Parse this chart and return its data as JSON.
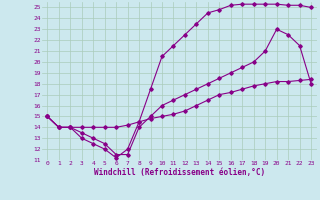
{
  "xlabel": "Windchill (Refroidissement éolien,°C)",
  "bg_color": "#cce8ee",
  "grid_color": "#aaccbb",
  "line_color": "#880088",
  "xlim": [
    -0.5,
    23.5
  ],
  "ylim": [
    11,
    25.5
  ],
  "xticks": [
    0,
    1,
    2,
    3,
    4,
    5,
    6,
    7,
    8,
    9,
    10,
    11,
    12,
    13,
    14,
    15,
    16,
    17,
    18,
    19,
    20,
    21,
    22,
    23
  ],
  "yticks": [
    11,
    12,
    13,
    14,
    15,
    16,
    17,
    18,
    19,
    20,
    21,
    22,
    23,
    24,
    25
  ],
  "line1_x": [
    0,
    1,
    2,
    3,
    4,
    5,
    6,
    7,
    8,
    9,
    10,
    11,
    12,
    13,
    14,
    15,
    16,
    17,
    18,
    19,
    20,
    21,
    22,
    23
  ],
  "line1_y": [
    15,
    14,
    14,
    13,
    12.5,
    12,
    11.2,
    12,
    14.5,
    17.5,
    20.5,
    21.5,
    22.5,
    23.5,
    24.5,
    24.8,
    25.2,
    25.3,
    25.3,
    25.3,
    25.3,
    25.2,
    25.2,
    25.0
  ],
  "line2_x": [
    0,
    1,
    2,
    3,
    4,
    5,
    6,
    7,
    8,
    9,
    10,
    11,
    12,
    13,
    14,
    15,
    16,
    17,
    18,
    19,
    20,
    21,
    22,
    23
  ],
  "line2_y": [
    15,
    14,
    14,
    13.5,
    13,
    12.5,
    11.5,
    11.5,
    14,
    15,
    16,
    16.5,
    17,
    17.5,
    18,
    18.5,
    19,
    19.5,
    20,
    21,
    23,
    22.5,
    21.5,
    18
  ],
  "line3_x": [
    0,
    1,
    2,
    3,
    4,
    5,
    6,
    7,
    8,
    9,
    10,
    11,
    12,
    13,
    14,
    15,
    16,
    17,
    18,
    19,
    20,
    21,
    22,
    23
  ],
  "line3_y": [
    15,
    14,
    14,
    14,
    14,
    14,
    14,
    14.2,
    14.5,
    14.8,
    15,
    15.2,
    15.5,
    16,
    16.5,
    17,
    17.2,
    17.5,
    17.8,
    18,
    18.2,
    18.2,
    18.3,
    18.4
  ],
  "marker": "D",
  "markersize": 1.8,
  "linewidth": 0.8,
  "tick_fontsize": 4.5,
  "xlabel_fontsize": 5.5
}
